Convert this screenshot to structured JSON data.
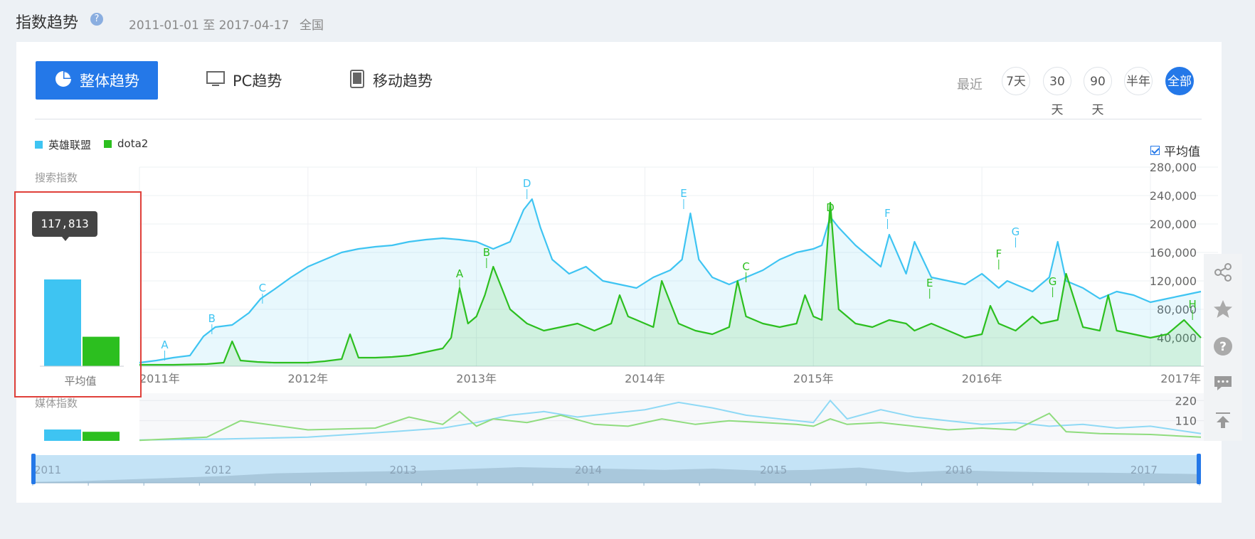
{
  "header": {
    "title": "指数趋势",
    "help": "?",
    "date_range": "2011-01-01 至 2017-04-17",
    "region": "全国"
  },
  "tabs": [
    {
      "label": "整体趋势",
      "icon": "pie-chart-icon",
      "active": true
    },
    {
      "label": "PC趋势",
      "icon": "monitor-icon",
      "active": false
    },
    {
      "label": "移动趋势",
      "icon": "tablet-icon",
      "active": false
    }
  ],
  "range_selector": {
    "label": "最近",
    "options": [
      "7天",
      "30天",
      "90天",
      "半年",
      "全部"
    ],
    "active": "全部"
  },
  "average_toggle": {
    "label": "平均值",
    "checked": true
  },
  "colors": {
    "lol": "#3ec4f2",
    "dota2": "#2cbf1f",
    "accent": "#2478e8",
    "highlight": "#e0403a"
  },
  "side_tools": [
    "share-icon",
    "star-icon",
    "help-icon",
    "comment-icon",
    "back-to-top-icon"
  ],
  "chart_data": [
    {
      "id": "search",
      "type": "area",
      "ylabel": "搜索指数",
      "legend": [
        "英雄联盟",
        "dota2"
      ],
      "ylim": [
        0,
        280000
      ],
      "yticks": [
        "280,000",
        "240,000",
        "200,000",
        "160,000",
        "120,000",
        "80,000",
        "40,000"
      ],
      "ytick_values": [
        280000,
        240000,
        200000,
        160000,
        120000,
        80000,
        40000
      ],
      "xlim": [
        2011.0,
        2017.3
      ],
      "x_ticks": [
        {
          "x": 2011.0,
          "label": "2011年"
        },
        {
          "x": 2012.0,
          "label": "2012年"
        },
        {
          "x": 2013.0,
          "label": "2013年"
        },
        {
          "x": 2014.0,
          "label": "2014年"
        },
        {
          "x": 2015.0,
          "label": "2015年"
        },
        {
          "x": 2016.0,
          "label": "2016年"
        },
        {
          "x": 2017.0,
          "label": "2017年"
        }
      ],
      "series": [
        {
          "name": "英雄联盟",
          "x": [
            2011.0,
            2011.1,
            2011.2,
            2011.3,
            2011.38,
            2011.45,
            2011.55,
            2011.65,
            2011.72,
            2011.8,
            2011.9,
            2012.0,
            2012.1,
            2012.2,
            2012.3,
            2012.4,
            2012.5,
            2012.6,
            2012.7,
            2012.8,
            2012.9,
            2013.0,
            2013.1,
            2013.2,
            2013.28,
            2013.33,
            2013.38,
            2013.45,
            2013.55,
            2013.65,
            2013.75,
            2013.85,
            2013.95,
            2014.05,
            2014.15,
            2014.22,
            2014.27,
            2014.32,
            2014.4,
            2014.5,
            2014.6,
            2014.7,
            2014.8,
            2014.9,
            2015.0,
            2015.05,
            2015.1,
            2015.15,
            2015.25,
            2015.35,
            2015.4,
            2015.45,
            2015.55,
            2015.6,
            2015.7,
            2015.8,
            2015.9,
            2016.0,
            2016.1,
            2016.2,
            2016.15,
            2016.3,
            2016.4,
            2016.45,
            2016.5,
            2016.6,
            2016.7,
            2016.8,
            2016.9,
            2017.0,
            2017.1,
            2017.2,
            2017.3
          ],
          "values": [
            5000,
            8000,
            12000,
            15000,
            42000,
            55000,
            58000,
            75000,
            95000,
            108000,
            125000,
            140000,
            150000,
            160000,
            165000,
            168000,
            170000,
            175000,
            178000,
            180000,
            178000,
            175000,
            165000,
            175000,
            220000,
            235000,
            195000,
            150000,
            130000,
            140000,
            120000,
            115000,
            110000,
            125000,
            135000,
            150000,
            215000,
            150000,
            125000,
            115000,
            125000,
            135000,
            150000,
            160000,
            165000,
            170000,
            210000,
            195000,
            170000,
            150000,
            140000,
            185000,
            130000,
            175000,
            125000,
            120000,
            115000,
            130000,
            110000,
            115000,
            120000,
            105000,
            125000,
            175000,
            120000,
            110000,
            95000,
            105000,
            100000,
            90000,
            95000,
            100000,
            105000
          ]
        },
        {
          "name": "dota2",
          "x": [
            2011.0,
            2011.2,
            2011.4,
            2011.5,
            2011.55,
            2011.6,
            2011.7,
            2011.8,
            2011.9,
            2012.0,
            2012.1,
            2012.2,
            2012.25,
            2012.3,
            2012.4,
            2012.5,
            2012.6,
            2012.7,
            2012.8,
            2012.85,
            2012.9,
            2012.95,
            2013.0,
            2013.05,
            2013.1,
            2013.15,
            2013.2,
            2013.3,
            2013.4,
            2013.5,
            2013.6,
            2013.7,
            2013.8,
            2013.85,
            2013.9,
            2014.0,
            2014.05,
            2014.1,
            2014.2,
            2014.3,
            2014.4,
            2014.5,
            2014.55,
            2014.6,
            2014.7,
            2014.8,
            2014.9,
            2014.95,
            2015.0,
            2015.05,
            2015.08,
            2015.1,
            2015.15,
            2015.25,
            2015.35,
            2015.45,
            2015.55,
            2015.6,
            2015.7,
            2015.8,
            2015.9,
            2016.0,
            2016.05,
            2016.1,
            2016.15,
            2016.2,
            2016.3,
            2016.35,
            2016.45,
            2016.5,
            2016.6,
            2016.7,
            2016.75,
            2016.8,
            2016.9,
            2017.0,
            2017.1,
            2017.2,
            2017.3
          ],
          "values": [
            2000,
            2000,
            3000,
            5000,
            35000,
            8000,
            6000,
            5000,
            5000,
            5000,
            7000,
            10000,
            45000,
            12000,
            12000,
            13000,
            15000,
            20000,
            25000,
            40000,
            110000,
            60000,
            70000,
            100000,
            140000,
            110000,
            80000,
            60000,
            50000,
            55000,
            60000,
            50000,
            60000,
            100000,
            70000,
            60000,
            55000,
            120000,
            60000,
            50000,
            45000,
            55000,
            120000,
            70000,
            60000,
            55000,
            60000,
            100000,
            70000,
            65000,
            160000,
            230000,
            80000,
            60000,
            55000,
            65000,
            60000,
            50000,
            60000,
            50000,
            40000,
            45000,
            85000,
            60000,
            55000,
            50000,
            70000,
            60000,
            65000,
            130000,
            55000,
            50000,
            100000,
            50000,
            45000,
            40000,
            45000,
            65000,
            40000
          ]
        }
      ],
      "annotations": [
        {
          "series": "英雄联盟",
          "label": "A",
          "x": 2011.15,
          "value": 8000
        },
        {
          "series": "英雄联盟",
          "label": "B",
          "x": 2011.43,
          "value": 45000
        },
        {
          "series": "英雄联盟",
          "label": "C",
          "x": 2011.73,
          "value": 88000
        },
        {
          "series": "英雄联盟",
          "label": "D",
          "x": 2013.3,
          "value": 235000
        },
        {
          "series": "英雄联盟",
          "label": "E",
          "x": 2014.23,
          "value": 221000
        },
        {
          "series": "英雄联盟",
          "label": "F",
          "x": 2015.44,
          "value": 193000
        },
        {
          "series": "英雄联盟",
          "label": "G",
          "x": 2016.2,
          "value": 167000
        },
        {
          "series": "dota2",
          "label": "A",
          "x": 2012.9,
          "value": 108000
        },
        {
          "series": "dota2",
          "label": "B",
          "x": 2013.06,
          "value": 138000
        },
        {
          "series": "dota2",
          "label": "C",
          "x": 2014.6,
          "value": 118000
        },
        {
          "series": "dota2",
          "label": "D",
          "x": 2015.1,
          "value": 201000
        },
        {
          "series": "dota2",
          "label": "E",
          "x": 2015.69,
          "value": 95000
        },
        {
          "series": "dota2",
          "label": "F",
          "x": 2016.1,
          "value": 136000
        },
        {
          "series": "dota2",
          "label": "G",
          "x": 2016.42,
          "value": 97000
        },
        {
          "series": "dota2",
          "label": "H",
          "x": 2017.25,
          "value": 65000
        }
      ]
    },
    {
      "id": "search_avg",
      "type": "bar",
      "xlabel": "平均值",
      "categories": [
        "英雄联盟",
        "dota2"
      ],
      "values": [
        117813,
        40000
      ],
      "ylim": [
        0,
        140000
      ],
      "tooltip": "117,813"
    },
    {
      "id": "media",
      "type": "line",
      "ylabel": "媒体指数",
      "yticks": [
        "220",
        "110"
      ],
      "ytick_values": [
        220,
        110
      ],
      "ylim": [
        0,
        260
      ],
      "xlim": [
        2011.0,
        2017.3
      ],
      "series": [
        {
          "name": "英雄联盟",
          "x": [
            2011.0,
            2011.5,
            2012.0,
            2012.5,
            2012.8,
            2013.0,
            2013.2,
            2013.4,
            2013.6,
            2013.8,
            2014.0,
            2014.2,
            2014.4,
            2014.6,
            2014.8,
            2015.0,
            2015.1,
            2015.2,
            2015.4,
            2015.6,
            2015.8,
            2016.0,
            2016.2,
            2016.4,
            2016.6,
            2016.8,
            2017.0,
            2017.3
          ],
          "values": [
            5,
            10,
            20,
            50,
            70,
            100,
            140,
            160,
            130,
            150,
            170,
            210,
            180,
            140,
            120,
            100,
            220,
            120,
            170,
            130,
            110,
            90,
            100,
            80,
            90,
            70,
            80,
            40
          ]
        },
        {
          "name": "dota2",
          "x": [
            2011.0,
            2011.4,
            2011.6,
            2012.0,
            2012.4,
            2012.6,
            2012.8,
            2012.9,
            2013.0,
            2013.1,
            2013.3,
            2013.5,
            2013.7,
            2013.9,
            2014.1,
            2014.3,
            2014.5,
            2014.7,
            2014.9,
            2015.0,
            2015.1,
            2015.2,
            2015.4,
            2015.6,
            2015.8,
            2016.0,
            2016.2,
            2016.4,
            2016.5,
            2016.7,
            2017.0,
            2017.3
          ],
          "values": [
            3,
            20,
            110,
            60,
            70,
            130,
            90,
            160,
            80,
            120,
            100,
            140,
            90,
            80,
            120,
            90,
            110,
            100,
            90,
            80,
            120,
            90,
            100,
            80,
            60,
            70,
            60,
            150,
            50,
            40,
            35,
            20
          ]
        }
      ]
    },
    {
      "id": "media_avg",
      "type": "bar",
      "categories": [
        "英雄联盟",
        "dota2"
      ],
      "values": [
        100,
        80
      ],
      "ylim": [
        0,
        100
      ]
    },
    {
      "id": "navigator",
      "type": "area",
      "x_ticks": [
        {
          "x": 2011.0,
          "label": "2011"
        },
        {
          "x": 2012.0,
          "label": "2012"
        },
        {
          "x": 2013.0,
          "label": "2013"
        },
        {
          "x": 2014.0,
          "label": "2014"
        },
        {
          "x": 2015.0,
          "label": "2015"
        },
        {
          "x": 2016.0,
          "label": "2016"
        },
        {
          "x": 2017.0,
          "label": "2017"
        }
      ],
      "xlim": [
        2011.0,
        2017.3
      ],
      "values": [
        5,
        10,
        20,
        30,
        40,
        55,
        60,
        65,
        70,
        80,
        90,
        85,
        80,
        75,
        82,
        70,
        75,
        88,
        60,
        72,
        65,
        60,
        58,
        55,
        50
      ]
    }
  ]
}
